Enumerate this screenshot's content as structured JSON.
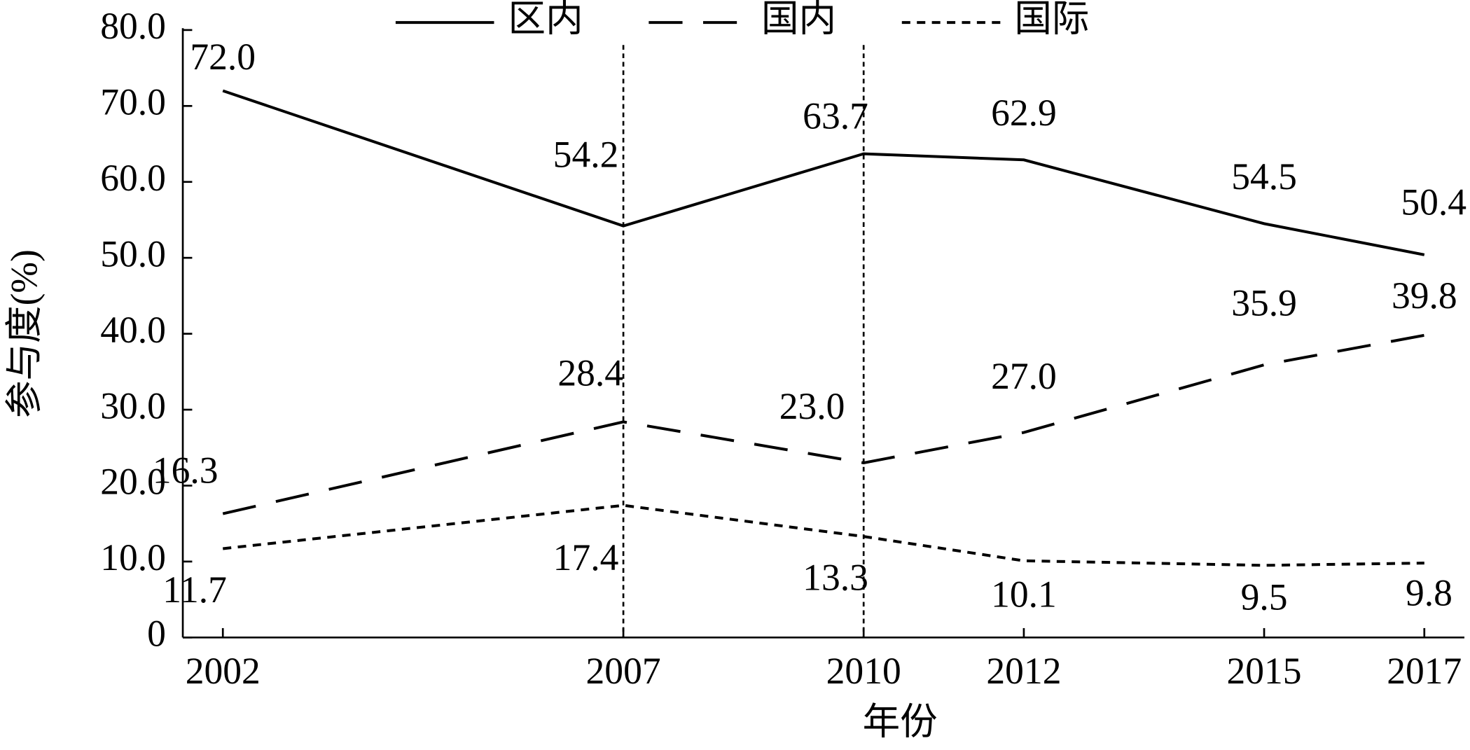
{
  "chart_data": {
    "type": "line",
    "x_label": "年份",
    "y_label": "参与度(%)",
    "x": [
      2002,
      2007,
      2010,
      2012,
      2015,
      2017
    ],
    "series": [
      {
        "name": "区内",
        "color": "#000000",
        "dash": "solid",
        "values": [
          72.0,
          54.2,
          63.7,
          62.9,
          54.5,
          50.4
        ],
        "value_labels": [
          "72.0",
          "54.2",
          "63.7",
          "62.9",
          "54.5",
          "50.4"
        ]
      },
      {
        "name": "国内",
        "color": "#000000",
        "dash": "dashed",
        "values": [
          16.3,
          28.4,
          23.0,
          27.0,
          35.9,
          39.8
        ],
        "value_labels": [
          "16.3",
          "28.4",
          "23.0",
          "27.0",
          "35.9",
          "39.8"
        ]
      },
      {
        "name": "国际",
        "color": "#000000",
        "dash": "dotted",
        "values": [
          11.7,
          17.4,
          13.3,
          10.1,
          9.5,
          9.8
        ],
        "value_labels": [
          "11.7",
          "17.4",
          "13.3",
          "10.1",
          "9.5",
          "9.8"
        ]
      }
    ],
    "xlim": [
      2001.5,
      2017.5
    ],
    "xticks": [
      2002,
      2007,
      2010,
      2012,
      2015,
      2017
    ],
    "ylim": [
      0,
      80
    ],
    "yticks": [
      0,
      {
        "value": 10,
        "label": "10.0"
      },
      {
        "value": 20,
        "label": "20.0"
      },
      {
        "value": 30,
        "label": "30.0"
      },
      {
        "value": 40,
        "label": "40.0"
      },
      {
        "value": 50,
        "label": "50.0"
      },
      {
        "value": 60,
        "label": "60.0"
      },
      {
        "value": 70,
        "label": "70.0"
      },
      {
        "value": 80,
        "label": "80.0"
      }
    ],
    "vlines": [
      2007,
      2010
    ],
    "grid": false,
    "legend": "top"
  }
}
